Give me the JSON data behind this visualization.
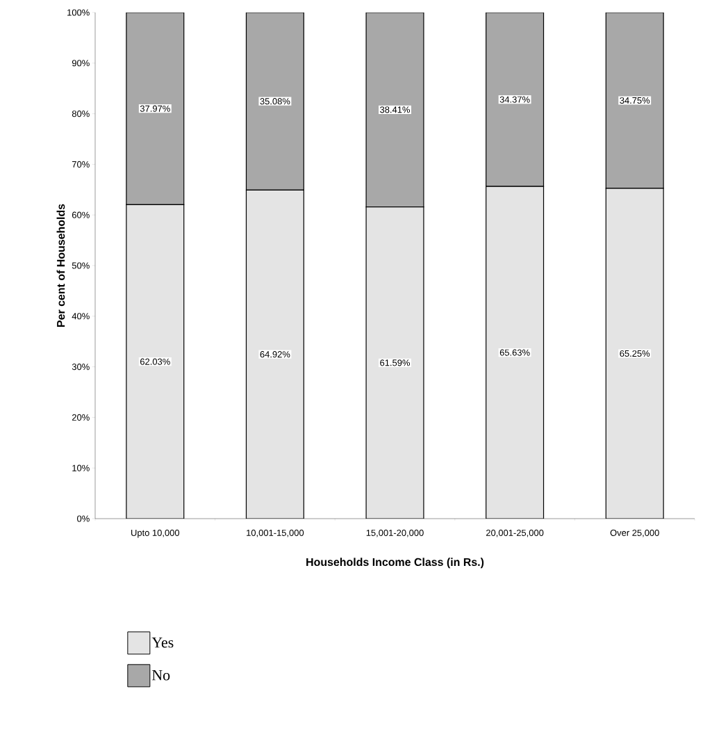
{
  "chart_data": {
    "type": "bar",
    "stacked": true,
    "xlabel": "Households Income Class (in Rs.)",
    "ylabel": "Per cent of Households",
    "categories": [
      "Upto 10,000",
      "10,001-15,000",
      "15,001-20,000",
      "20,001-25,000",
      "Over 25,000"
    ],
    "series": [
      {
        "name": "Yes",
        "color": "#e4e4e4",
        "values": [
          62.03,
          64.92,
          61.59,
          65.63,
          65.25
        ],
        "value_labels": [
          "62.03%",
          "64.92%",
          "61.59%",
          "65.63%",
          "65.25%"
        ]
      },
      {
        "name": "No",
        "color": "#a8a8a8",
        "values": [
          37.97,
          35.08,
          38.41,
          34.37,
          34.75
        ],
        "value_labels": [
          "37.97%",
          "35.08%",
          "38.41%",
          "34.37%",
          "34.75%"
        ]
      }
    ],
    "ylim": [
      0,
      100
    ],
    "yticks": [
      {
        "value": 0,
        "label": "0%"
      },
      {
        "value": 10,
        "label": "10%"
      },
      {
        "value": 20,
        "label": "20%"
      },
      {
        "value": 30,
        "label": "30%"
      },
      {
        "value": 40,
        "label": "40%"
      },
      {
        "value": 50,
        "label": "50%"
      },
      {
        "value": 60,
        "label": "60%"
      },
      {
        "value": 70,
        "label": "70%"
      },
      {
        "value": 80,
        "label": "80%"
      },
      {
        "value": 90,
        "label": "90%"
      },
      {
        "value": 100,
        "label": "100%"
      }
    ],
    "grid": false,
    "legend": "bottom"
  }
}
